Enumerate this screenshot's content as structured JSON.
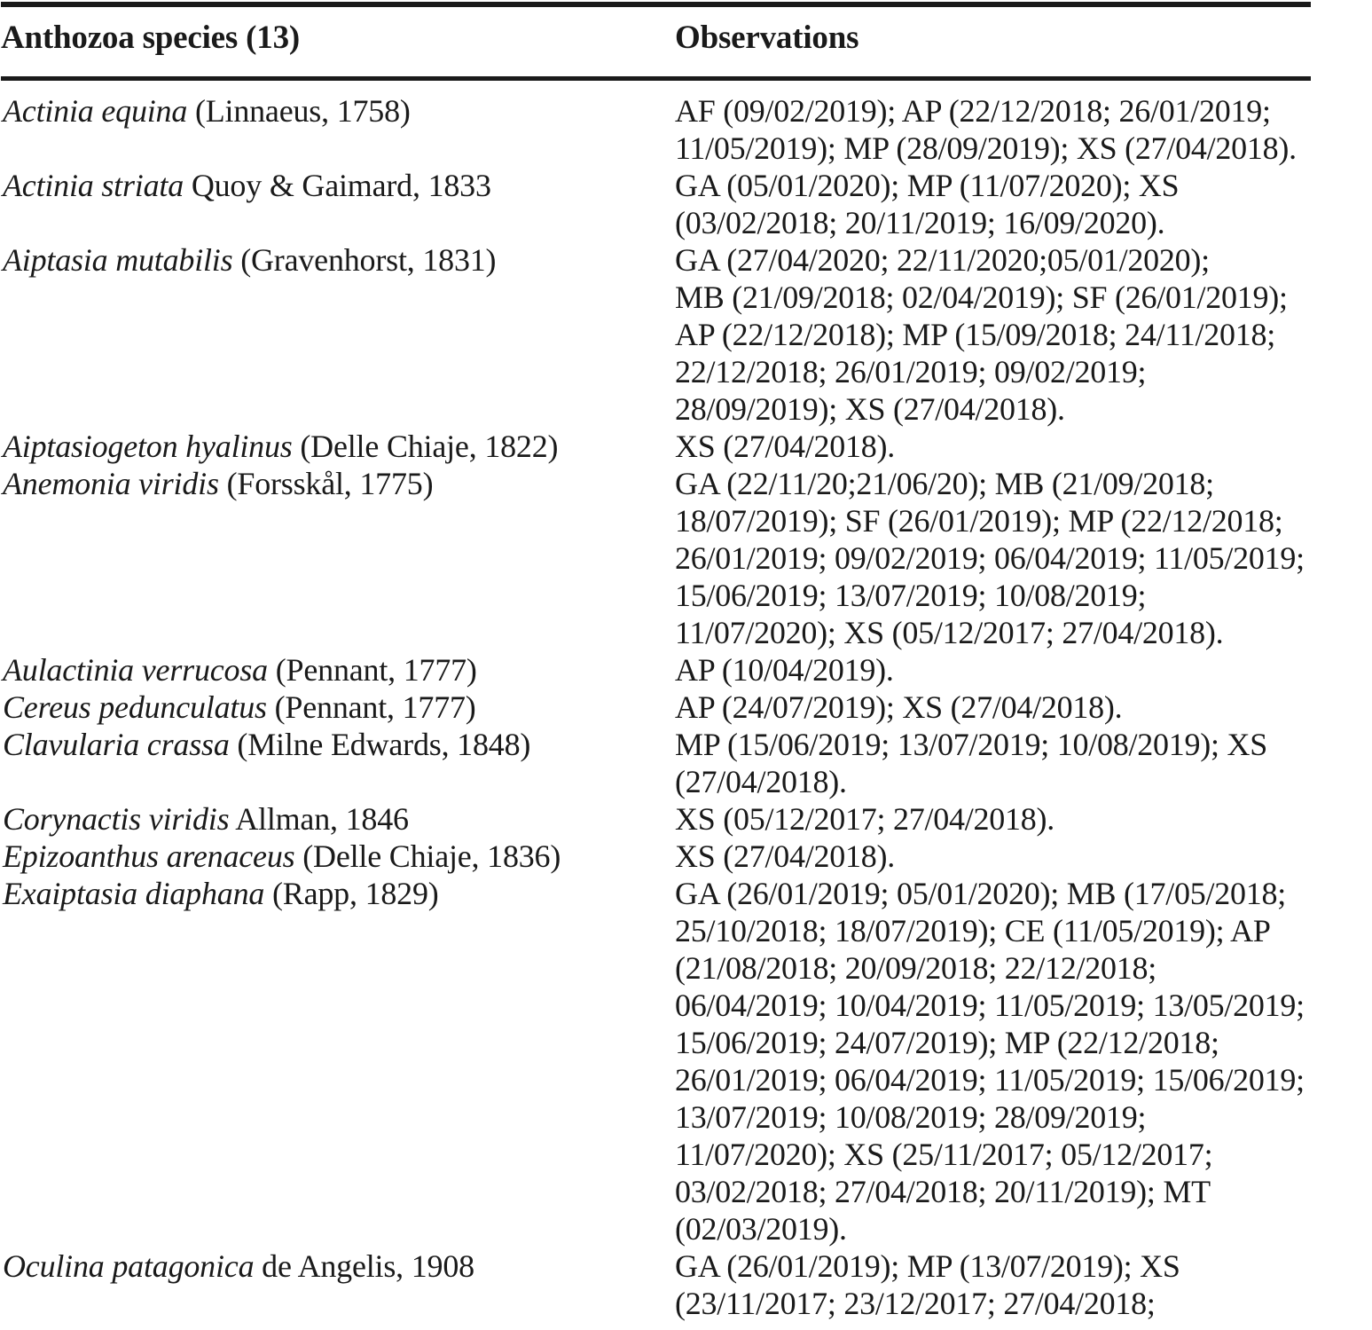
{
  "page": {
    "background_color": "#ffffff",
    "text_color": "#1a1a1a",
    "rule_color": "#1a1a1a"
  },
  "table": {
    "header": {
      "species_column_label": "Anthozoa species (13)",
      "observations_column_label": "Observations"
    },
    "rows": [
      {
        "species": "Actinia equina",
        "authority": "(Linnaeus, 1758)",
        "observations": [
          "AF (09/02/2019); AP (22/12/2018; 26/01/2019;",
          "11/05/2019); MP (28/09/2019); XS (27/04/2018)."
        ]
      },
      {
        "species": "Actinia striata",
        "authority": "Quoy & Gaimard, 1833",
        "observations": [
          "GA (05/01/2020); MP (11/07/2020); XS",
          "(03/02/2018; 20/11/2019; 16/09/2020)."
        ]
      },
      {
        "species": "Aiptasia mutabilis",
        "authority": "(Gravenhorst, 1831)",
        "observations": [
          "GA (27/04/2020; 22/11/2020;05/01/2020);",
          "MB (21/09/2018; 02/04/2019); SF (26/01/2019);",
          "AP (22/12/2018); MP (15/09/2018; 24/11/2018;",
          "22/12/2018; 26/01/2019; 09/02/2019;",
          "28/09/2019); XS (27/04/2018)."
        ]
      },
      {
        "species": "Aiptasiogeton hyalinus",
        "authority": "(Delle Chiaje, 1822)",
        "observations": [
          "XS (27/04/2018)."
        ]
      },
      {
        "species": "Anemonia viridis",
        "authority": "(Forsskål, 1775)",
        "observations": [
          "GA (22/11/20;21/06/20); MB (21/09/2018;",
          "18/07/2019); SF (26/01/2019); MP (22/12/2018;",
          "26/01/2019; 09/02/2019; 06/04/2019; 11/05/2019;",
          "15/06/2019; 13/07/2019; 10/08/2019;",
          "11/07/2020); XS (05/12/2017; 27/04/2018)."
        ]
      },
      {
        "species": "Aulactinia verrucosa",
        "authority": "(Pennant, 1777)",
        "observations": [
          "AP (10/04/2019)."
        ]
      },
      {
        "species": "Cereus pedunculatus",
        "authority": "(Pennant, 1777)",
        "observations": [
          "AP (24/07/2019); XS (27/04/2018)."
        ]
      },
      {
        "species": "Clavularia crassa",
        "authority": "(Milne Edwards, 1848)",
        "observations": [
          "MP (15/06/2019; 13/07/2019; 10/08/2019); XS",
          "(27/04/2018)."
        ]
      },
      {
        "species": "Corynactis viridis",
        "authority": "Allman, 1846",
        "observations": [
          "XS (05/12/2017; 27/04/2018)."
        ]
      },
      {
        "species": "Epizoanthus arenaceus",
        "authority": "(Delle Chiaje, 1836)",
        "observations": [
          "XS (27/04/2018)."
        ]
      },
      {
        "species": "Exaiptasia diaphana",
        "authority": "(Rapp, 1829)",
        "observations": [
          "GA (26/01/2019; 05/01/2020); MB (17/05/2018;",
          "25/10/2018; 18/07/2019); CE (11/05/2019); AP",
          "(21/08/2018; 20/09/2018; 22/12/2018;",
          "06/04/2019; 10/04/2019; 11/05/2019; 13/05/2019;",
          "15/06/2019; 24/07/2019); MP (22/12/2018;",
          "26/01/2019; 06/04/2019; 11/05/2019; 15/06/2019;",
          "13/07/2019; 10/08/2019; 28/09/2019;",
          "11/07/2020); XS (25/11/2017; 05/12/2017;",
          "03/02/2018; 27/04/2018; 20/11/2019); MT",
          "(02/03/2019)."
        ]
      },
      {
        "species": "Oculina patagonica",
        "authority": "de Angelis, 1908",
        "observations": [
          "GA (26/01/2019); MP (13/07/2019); XS",
          "(23/11/2017; 23/12/2017; 27/04/2018;"
        ]
      }
    ]
  }
}
